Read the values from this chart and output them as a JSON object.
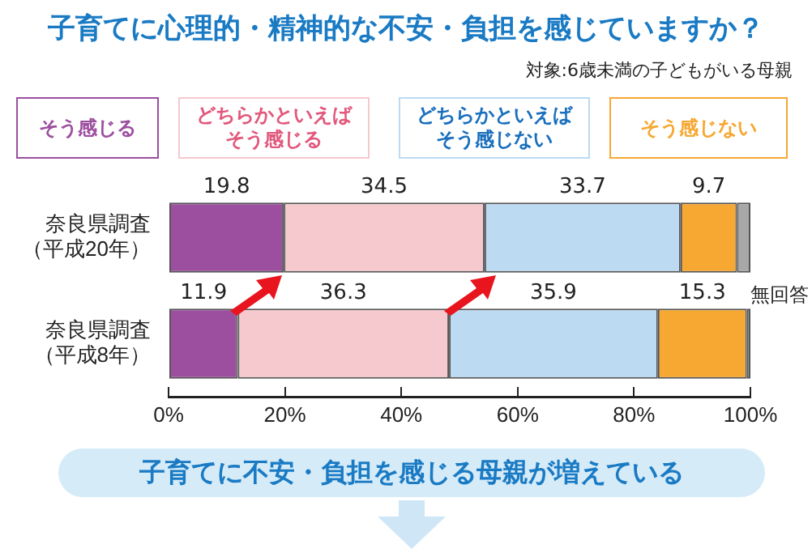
{
  "chart_data": {
    "type": "bar",
    "orientation": "horizontal",
    "stacked": true,
    "title": "子育てに心理的・精神的な不安・負担を感じていますか？",
    "subtitle": "対象:6歳未満の子どもがいる母親",
    "categories": [
      "奈良県調査（平成20年）",
      "奈良県調査（平成8年）"
    ],
    "series": [
      {
        "name": "そう感じる",
        "color": "#9c4f9f",
        "values": [
          19.8,
          11.9
        ],
        "value_labels": [
          "19.8",
          "11.9"
        ]
      },
      {
        "name": "どちらかといえばそう感じる",
        "color": "#f6c9cf",
        "values": [
          34.5,
          36.3
        ],
        "value_labels": [
          "34.5",
          "36.3"
        ]
      },
      {
        "name": "どちらかといえばそう感じない",
        "color": "#bcdaf2",
        "values": [
          33.7,
          35.9
        ],
        "value_labels": [
          "33.7",
          "35.9"
        ]
      },
      {
        "name": "そう感じない",
        "color": "#f6a833",
        "values": [
          9.7,
          15.3
        ],
        "value_labels": [
          "9.7",
          "15.3"
        ]
      },
      {
        "name": "無回答",
        "color": "#a8a8a8",
        "values": [
          2.3,
          0.6
        ],
        "value_labels": [
          null,
          null
        ]
      }
    ],
    "xlim": [
      0,
      100
    ],
    "xticks": [
      {
        "value": 0,
        "label": "0%"
      },
      {
        "value": 20,
        "label": "20%"
      },
      {
        "value": 40,
        "label": "40%"
      },
      {
        "value": 60,
        "label": "60%"
      },
      {
        "value": 80,
        "label": "80%"
      },
      {
        "value": 100,
        "label": "100%"
      }
    ],
    "grid": false,
    "legend": "top",
    "annotations": [
      "子育てに不安・負担を感じる母親が増えている"
    ]
  }
}
